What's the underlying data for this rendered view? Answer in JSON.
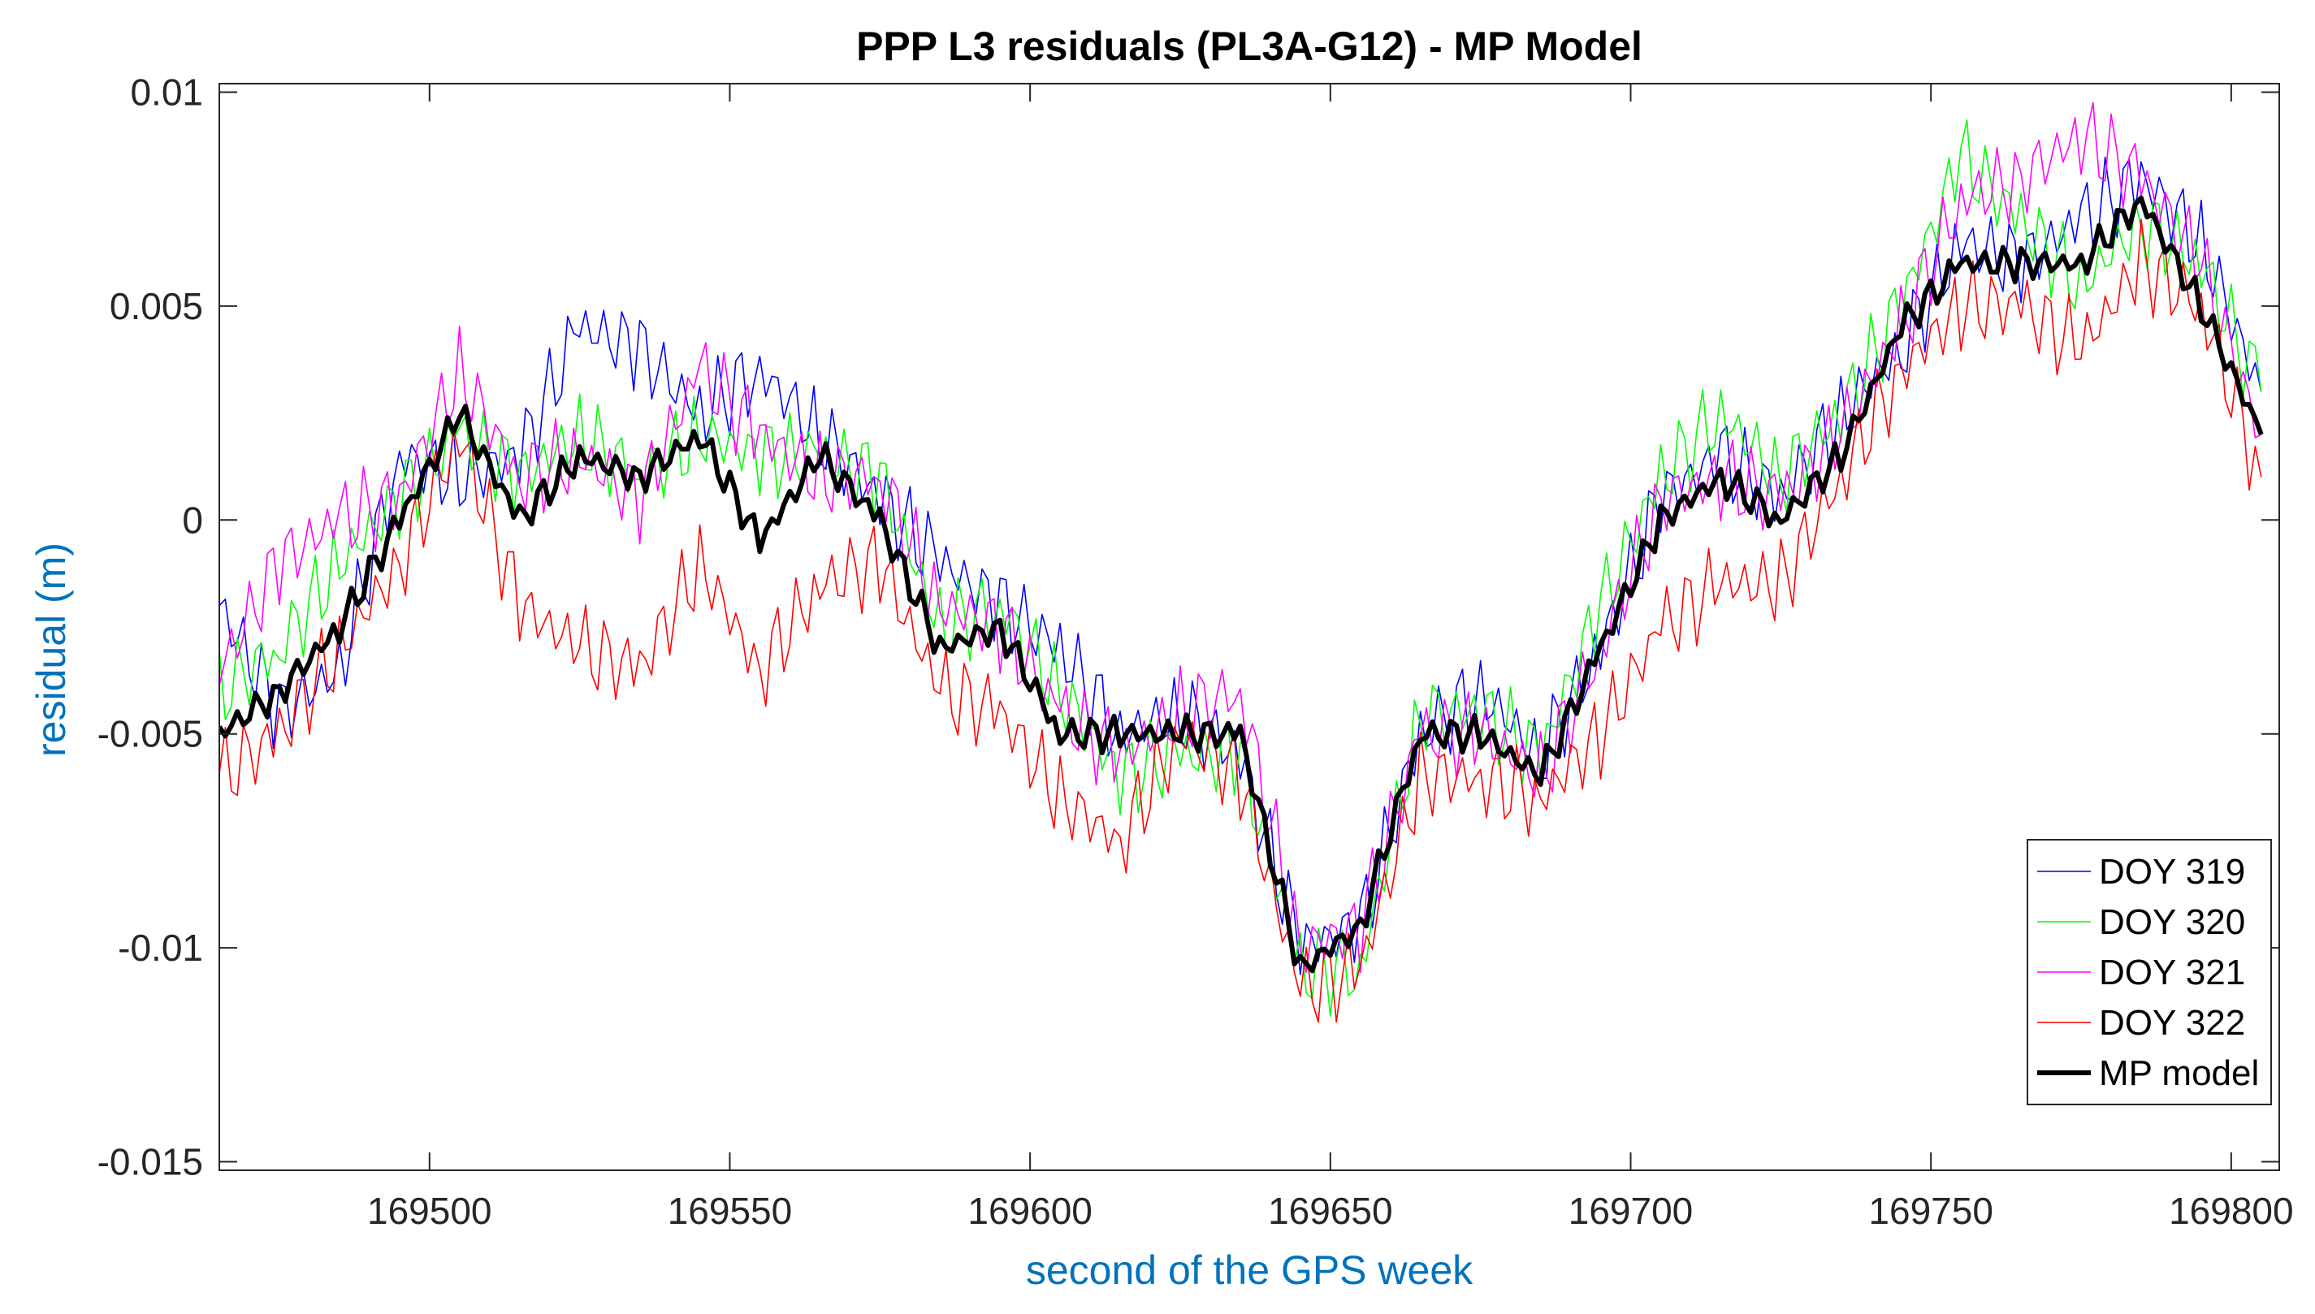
{
  "chart_data": {
    "type": "line",
    "title": "PPP L3 residuals (PL3A-G12) - MP Model",
    "xlabel": "second of the GPS week",
    "ylabel": "residual (m)",
    "xlim": [
      169465,
      169808
    ],
    "ylim": [
      -0.0152,
      0.0102
    ],
    "xticks": [
      169500,
      169550,
      169600,
      169650,
      169700,
      169750,
      169800
    ],
    "xtick_labels": [
      "169500",
      "169550",
      "169600",
      "169650",
      "169700",
      "169750",
      "169800"
    ],
    "yticks": [
      0.01,
      0.005,
      0,
      -0.005,
      -0.01,
      -0.015
    ],
    "ytick_labels": [
      "0.01",
      "0.005",
      "0",
      "-0.005",
      "-0.01",
      "-0.015"
    ],
    "legend_position": "bottom-right",
    "x": [
      169465,
      169475,
      169485,
      169495,
      169505,
      169515,
      169525,
      169535,
      169545,
      169555,
      169565,
      169575,
      169585,
      169595,
      169605,
      169615,
      169625,
      169635,
      169645,
      169655,
      169665,
      169675,
      169685,
      169695,
      169705,
      169715,
      169725,
      169735,
      169745,
      169755,
      169765,
      169775,
      169785,
      169795,
      169805
    ],
    "series": [
      {
        "name": "DOY 319",
        "color": "#0000FF",
        "width": 1.6,
        "values": [
          -0.002,
          -0.0045,
          -0.0035,
          0.0015,
          0.001,
          0.0015,
          0.0045,
          0.004,
          0.0025,
          0.0035,
          0.002,
          0.0005,
          -0.001,
          -0.002,
          -0.003,
          -0.005,
          -0.0045,
          -0.0055,
          -0.01,
          -0.0095,
          -0.005,
          -0.004,
          -0.0055,
          -0.003,
          0.0005,
          0.0015,
          0.0005,
          0.0025,
          0.004,
          0.0065,
          0.006,
          0.007,
          0.008,
          0.0065,
          0.003
        ]
      },
      {
        "name": "DOY 320",
        "color": "#00FF00",
        "width": 1.6,
        "values": [
          -0.004,
          -0.003,
          -0.001,
          0.0005,
          0.002,
          0.001,
          0.002,
          0.001,
          0.002,
          0.0015,
          0.0015,
          0.001,
          -0.0025,
          -0.002,
          -0.004,
          -0.006,
          -0.0055,
          -0.0055,
          -0.0105,
          -0.0105,
          -0.0045,
          -0.0045,
          -0.0055,
          -0.002,
          0.001,
          0.0025,
          0.001,
          0.0025,
          0.005,
          0.0085,
          0.007,
          0.0055,
          0.007,
          0.006,
          0.003
        ]
      },
      {
        "name": "DOY 321",
        "color": "#FF00FF",
        "width": 1.6,
        "values": [
          -0.0035,
          -0.001,
          0.0,
          0.0005,
          0.0035,
          0.001,
          0.0015,
          0.0005,
          0.0035,
          0.002,
          0.001,
          0.001,
          -0.002,
          -0.0025,
          -0.0045,
          -0.0055,
          -0.0045,
          -0.004,
          -0.01,
          -0.0095,
          -0.005,
          -0.005,
          -0.006,
          -0.003,
          0.0005,
          0.001,
          0.0005,
          0.002,
          0.0045,
          0.0075,
          0.008,
          0.009,
          0.008,
          0.006,
          0.002
        ]
      },
      {
        "name": "DOY 322",
        "color": "#FF0000",
        "width": 1.6,
        "values": [
          -0.006,
          -0.005,
          -0.003,
          -0.001,
          0.002,
          -0.002,
          -0.003,
          -0.0035,
          -0.001,
          -0.0035,
          -0.0015,
          -0.001,
          -0.004,
          -0.0045,
          -0.0065,
          -0.0075,
          -0.005,
          -0.006,
          -0.011,
          -0.0105,
          -0.006,
          -0.006,
          -0.0065,
          -0.005,
          -0.0025,
          -0.0015,
          -0.0015,
          0.001,
          0.0035,
          0.005,
          0.005,
          0.004,
          0.006,
          0.005,
          0.001
        ]
      },
      {
        "name": "MP model",
        "color": "#000000",
        "width": 6,
        "values": [
          -0.005,
          -0.004,
          -0.0025,
          0.0,
          0.0025,
          0.0,
          0.0015,
          0.001,
          0.002,
          -0.0005,
          0.0015,
          0.0,
          -0.003,
          -0.0025,
          -0.005,
          -0.005,
          -0.005,
          -0.005,
          -0.0105,
          -0.0095,
          -0.005,
          -0.005,
          -0.006,
          -0.003,
          0.0,
          0.001,
          0.0,
          0.0015,
          0.0045,
          0.006,
          0.006,
          0.006,
          0.0075,
          0.005,
          0.002
        ]
      }
    ]
  }
}
